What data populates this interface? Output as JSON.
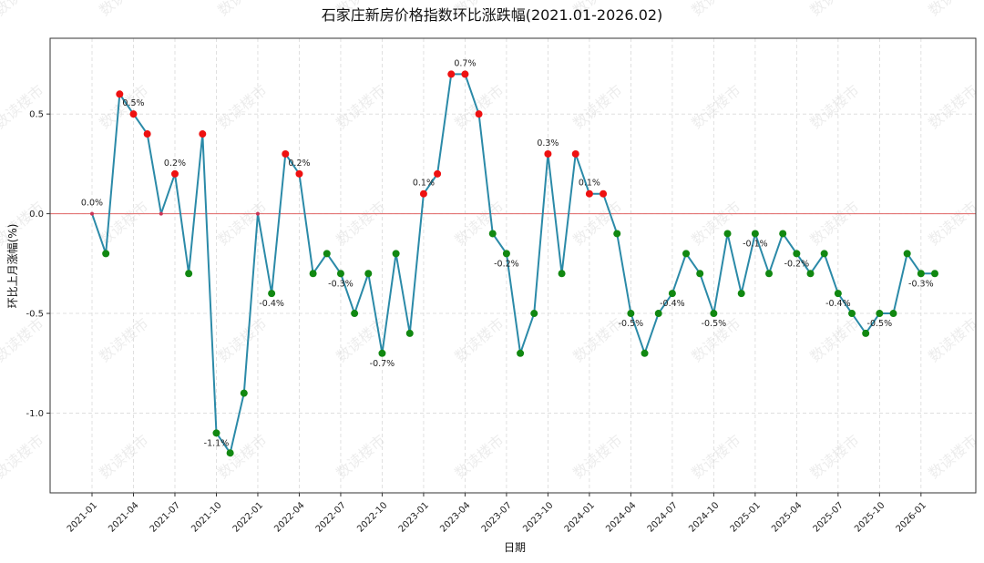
{
  "chart_data": {
    "type": "line",
    "title": "石家庄新房价格指数环比涨跌幅(2021.01-2026.02)",
    "xlabel": "日期",
    "ylabel": "环比上月涨幅(%)",
    "watermark": "数读楼市",
    "ylim": [
      -1.4,
      0.88
    ],
    "y_ticks": [
      "0.5",
      "0.0",
      "-0.5",
      "-1.0"
    ],
    "x_tick_labels": [
      "2021-01",
      "2021-04",
      "2021-07",
      "2021-10",
      "2022-01",
      "2022-04",
      "2022-07",
      "2022-10",
      "2023-01",
      "2023-04",
      "2023-07",
      "2023-10",
      "2024-01",
      "2024-04",
      "2024-07",
      "2024-10",
      "2025-01",
      "2025-04",
      "2025-07",
      "2025-10",
      "2026-01"
    ],
    "grid": true,
    "reference_line": 0.0,
    "colors": {
      "line": "#2b8aa8",
      "up": "#ee1111",
      "down": "#118811",
      "zero": "#cc3355",
      "reference": "#e06666"
    },
    "x": [
      "2021-01",
      "2021-02",
      "2021-03",
      "2021-04",
      "2021-05",
      "2021-06",
      "2021-07",
      "2021-08",
      "2021-09",
      "2021-10",
      "2021-11",
      "2021-12",
      "2022-01",
      "2022-02",
      "2022-03",
      "2022-04",
      "2022-05",
      "2022-06",
      "2022-07",
      "2022-08",
      "2022-09",
      "2022-10",
      "2022-11",
      "2022-12",
      "2023-01",
      "2023-02",
      "2023-03",
      "2023-04",
      "2023-05",
      "2023-06",
      "2023-07",
      "2023-08",
      "2023-09",
      "2023-10",
      "2023-11",
      "2023-12",
      "2024-01",
      "2024-02",
      "2024-03",
      "2024-04",
      "2024-05",
      "2024-06",
      "2024-07",
      "2024-08",
      "2024-09",
      "2024-10",
      "2024-11",
      "2024-12",
      "2025-01",
      "2025-02",
      "2025-03",
      "2025-04",
      "2025-05",
      "2025-06",
      "2025-07",
      "2025-08",
      "2025-09",
      "2025-10",
      "2025-11",
      "2025-12",
      "2026-01",
      "2026-02"
    ],
    "values": [
      0.0,
      -0.2,
      0.6,
      0.5,
      0.4,
      0.0,
      0.2,
      -0.3,
      0.4,
      -1.1,
      -1.2,
      -0.9,
      0.0,
      -0.4,
      0.3,
      0.2,
      -0.3,
      -0.2,
      -0.3,
      -0.5,
      -0.3,
      -0.7,
      -0.2,
      -0.6,
      0.1,
      0.2,
      0.7,
      0.7,
      0.5,
      -0.1,
      -0.2,
      -0.7,
      -0.5,
      0.3,
      -0.3,
      0.3,
      0.1,
      0.1,
      -0.1,
      -0.5,
      -0.7,
      -0.5,
      -0.4,
      -0.2,
      -0.3,
      -0.5,
      -0.1,
      -0.4,
      -0.1,
      -0.3,
      -0.1,
      -0.2,
      -0.3,
      -0.2,
      -0.4,
      -0.5,
      -0.6,
      -0.5,
      -0.5,
      -0.2,
      -0.3,
      -0.3
    ],
    "data_labels": [
      {
        "x": "2021-01",
        "text": "0.0%"
      },
      {
        "x": "2021-04",
        "text": "0.5%"
      },
      {
        "x": "2021-07",
        "text": "0.2%"
      },
      {
        "x": "2021-10",
        "text": "-1.1%"
      },
      {
        "x": "2022-02",
        "text": "-0.4%"
      },
      {
        "x": "2022-04",
        "text": "0.2%"
      },
      {
        "x": "2022-07",
        "text": "-0.3%"
      },
      {
        "x": "2022-10",
        "text": "-0.7%"
      },
      {
        "x": "2023-01",
        "text": "0.1%"
      },
      {
        "x": "2023-04",
        "text": "0.7%"
      },
      {
        "x": "2023-07",
        "text": "-0.2%"
      },
      {
        "x": "2023-10",
        "text": "0.3%"
      },
      {
        "x": "2024-01",
        "text": "0.1%"
      },
      {
        "x": "2024-04",
        "text": "-0.5%"
      },
      {
        "x": "2024-07",
        "text": "-0.4%"
      },
      {
        "x": "2024-10",
        "text": "-0.5%"
      },
      {
        "x": "2025-01",
        "text": "-0.1%"
      },
      {
        "x": "2025-04",
        "text": "-0.2%"
      },
      {
        "x": "2025-07",
        "text": "-0.4%"
      },
      {
        "x": "2025-10",
        "text": "-0.5%"
      },
      {
        "x": "2026-01",
        "text": "-0.3%"
      }
    ]
  }
}
